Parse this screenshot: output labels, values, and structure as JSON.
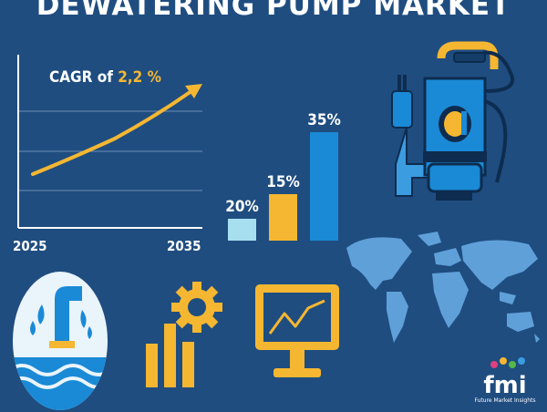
{
  "title": "DEWATERING PUMP MARKET",
  "cagr": {
    "prefix": "CAGR of ",
    "value": "2,2 %"
  },
  "year_start": "2025",
  "year_end": "2035",
  "bars": [
    {
      "label": "20%",
      "value": 20,
      "color": "#a8dff0"
    },
    {
      "label": "15%",
      "value": 15,
      "color": "#f5b731"
    },
    {
      "label": "35%",
      "value": 35,
      "color": "#1a8ad6"
    }
  ],
  "logo": {
    "mark": "fmi",
    "company": "Future Market Insights"
  },
  "colors": {
    "background": "#1f4d80",
    "accent_yellow": "#f5b731",
    "accent_blue": "#1a8ad6",
    "light_blue": "#a8dff0"
  }
}
